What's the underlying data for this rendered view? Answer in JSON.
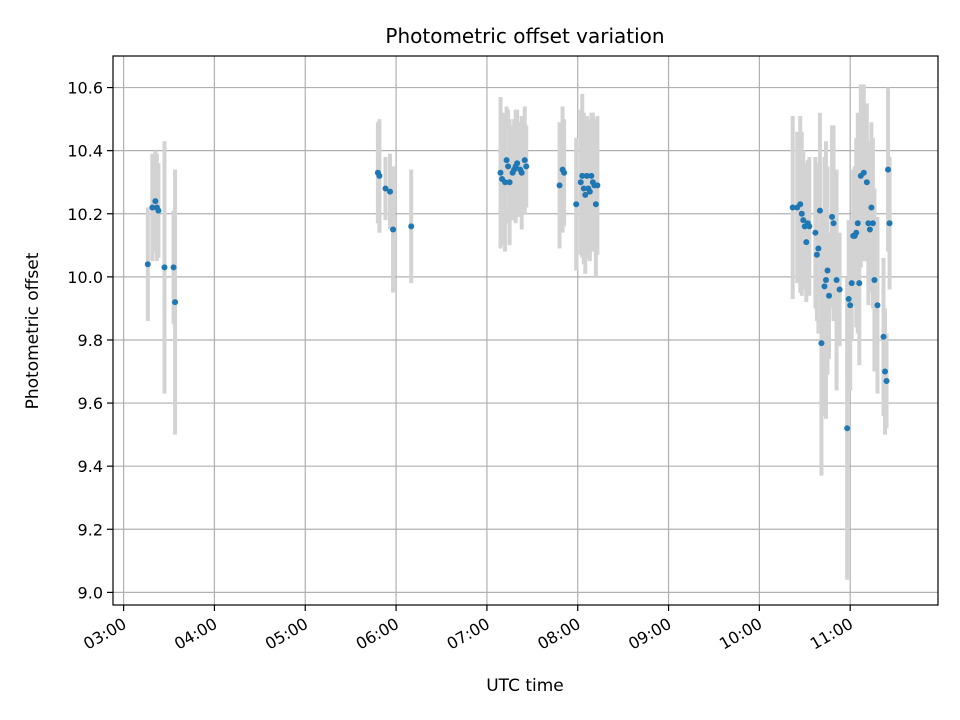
{
  "chart_data": {
    "type": "scatter",
    "title": "Photometric offset variation",
    "xlabel": "UTC time",
    "ylabel": "Photometric offset",
    "x_unit": "UTC time (HH:MM)",
    "xlim": [
      "02:53",
      "11:58"
    ],
    "ylim": [
      8.96,
      10.7
    ],
    "xticks": [
      "03:00",
      "04:00",
      "05:00",
      "06:00",
      "07:00",
      "08:00",
      "09:00",
      "10:00",
      "11:00"
    ],
    "yticks": [
      9.0,
      9.2,
      9.4,
      9.6,
      9.8,
      10.0,
      10.2,
      10.4,
      10.6
    ],
    "grid": true,
    "colors": {
      "points": "#1f77b4",
      "errorbars": "#d3d3d3",
      "grid": "#b0b0b0"
    },
    "series": [
      {
        "x": [
          "03:16",
          "03:19",
          "03:21",
          "03:22",
          "03:23",
          "03:27",
          "03:33",
          "03:34",
          "05:48",
          "05:49",
          "05:53",
          "05:56",
          "05:58",
          "06:10",
          "07:09",
          "07:10",
          "07:12",
          "07:13",
          "07:14",
          "07:15",
          "07:17",
          "07:18",
          "07:19",
          "07:20",
          "07:22",
          "07:23",
          "07:25",
          "07:26",
          "07:48",
          "07:50",
          "07:51",
          "07:59",
          "08:02",
          "08:03",
          "08:04",
          "08:05",
          "08:06",
          "08:07",
          "08:08",
          "08:09",
          "08:10",
          "08:11",
          "08:12",
          "08:13",
          "10:22",
          "10:25",
          "10:27",
          "10:28",
          "10:29",
          "10:30",
          "10:31",
          "10:32",
          "10:33",
          "10:37",
          "10:38",
          "10:39",
          "10:40",
          "10:41",
          "10:43",
          "10:44",
          "10:45",
          "10:46",
          "10:48",
          "10:49",
          "10:51",
          "10:53",
          "10:58",
          "10:59",
          "11:00",
          "11:01",
          "11:02",
          "11:03",
          "11:04",
          "11:05",
          "11:06",
          "11:07",
          "11:09",
          "11:11",
          "11:12",
          "11:13",
          "11:14",
          "11:15",
          "11:16",
          "11:18",
          "11:22",
          "11:23",
          "11:24",
          "11:25",
          "11:26"
        ],
        "y": [
          10.04,
          10.22,
          10.24,
          10.22,
          10.21,
          10.03,
          10.03,
          9.92,
          10.33,
          10.32,
          10.28,
          10.27,
          10.15,
          10.16,
          10.33,
          10.31,
          10.3,
          10.37,
          10.35,
          10.3,
          10.33,
          10.34,
          10.35,
          10.36,
          10.34,
          10.33,
          10.37,
          10.35,
          10.29,
          10.34,
          10.33,
          10.23,
          10.3,
          10.32,
          10.28,
          10.26,
          10.32,
          10.28,
          10.27,
          10.32,
          10.3,
          10.29,
          10.23,
          10.29,
          10.22,
          10.22,
          10.23,
          10.2,
          10.18,
          10.16,
          10.11,
          10.17,
          10.16,
          10.14,
          10.07,
          10.09,
          10.21,
          9.79,
          9.97,
          9.99,
          10.02,
          9.94,
          10.19,
          10.17,
          9.99,
          9.96,
          9.52,
          9.93,
          9.91,
          9.98,
          10.13,
          10.13,
          10.14,
          10.17,
          9.98,
          10.32,
          10.33,
          10.3,
          10.17,
          10.15,
          10.22,
          10.17,
          9.99,
          9.91,
          9.81,
          9.7,
          9.67,
          10.34,
          10.17
        ],
        "err": [
          0.18,
          0.17,
          0.16,
          0.17,
          0.15,
          0.4,
          0.18,
          0.42,
          0.16,
          0.18,
          0.1,
          0.12,
          0.2,
          0.18,
          0.24,
          0.21,
          0.22,
          0.17,
          0.18,
          0.2,
          0.15,
          0.16,
          0.18,
          0.17,
          0.15,
          0.18,
          0.17,
          0.13,
          0.2,
          0.2,
          0.17,
          0.21,
          0.23,
          0.26,
          0.24,
          0.25,
          0.19,
          0.22,
          0.22,
          0.2,
          0.22,
          0.21,
          0.23,
          0.22,
          0.29,
          0.24,
          0.28,
          0.26,
          0.22,
          0.2,
          0.19,
          0.2,
          0.22,
          0.24,
          0.21,
          0.27,
          0.31,
          0.42,
          0.41,
          0.44,
          0.33,
          0.2,
          0.29,
          0.31,
          0.35,
          0.18,
          0.48,
          0.25,
          0.27,
          0.18,
          0.21,
          0.22,
          0.3,
          0.35,
          0.26,
          0.29,
          0.28,
          0.25,
          0.26,
          0.14,
          0.27,
          0.27,
          0.29,
          0.28,
          0.25,
          0.2,
          0.15,
          0.26,
          0.21
        ]
      }
    ]
  }
}
